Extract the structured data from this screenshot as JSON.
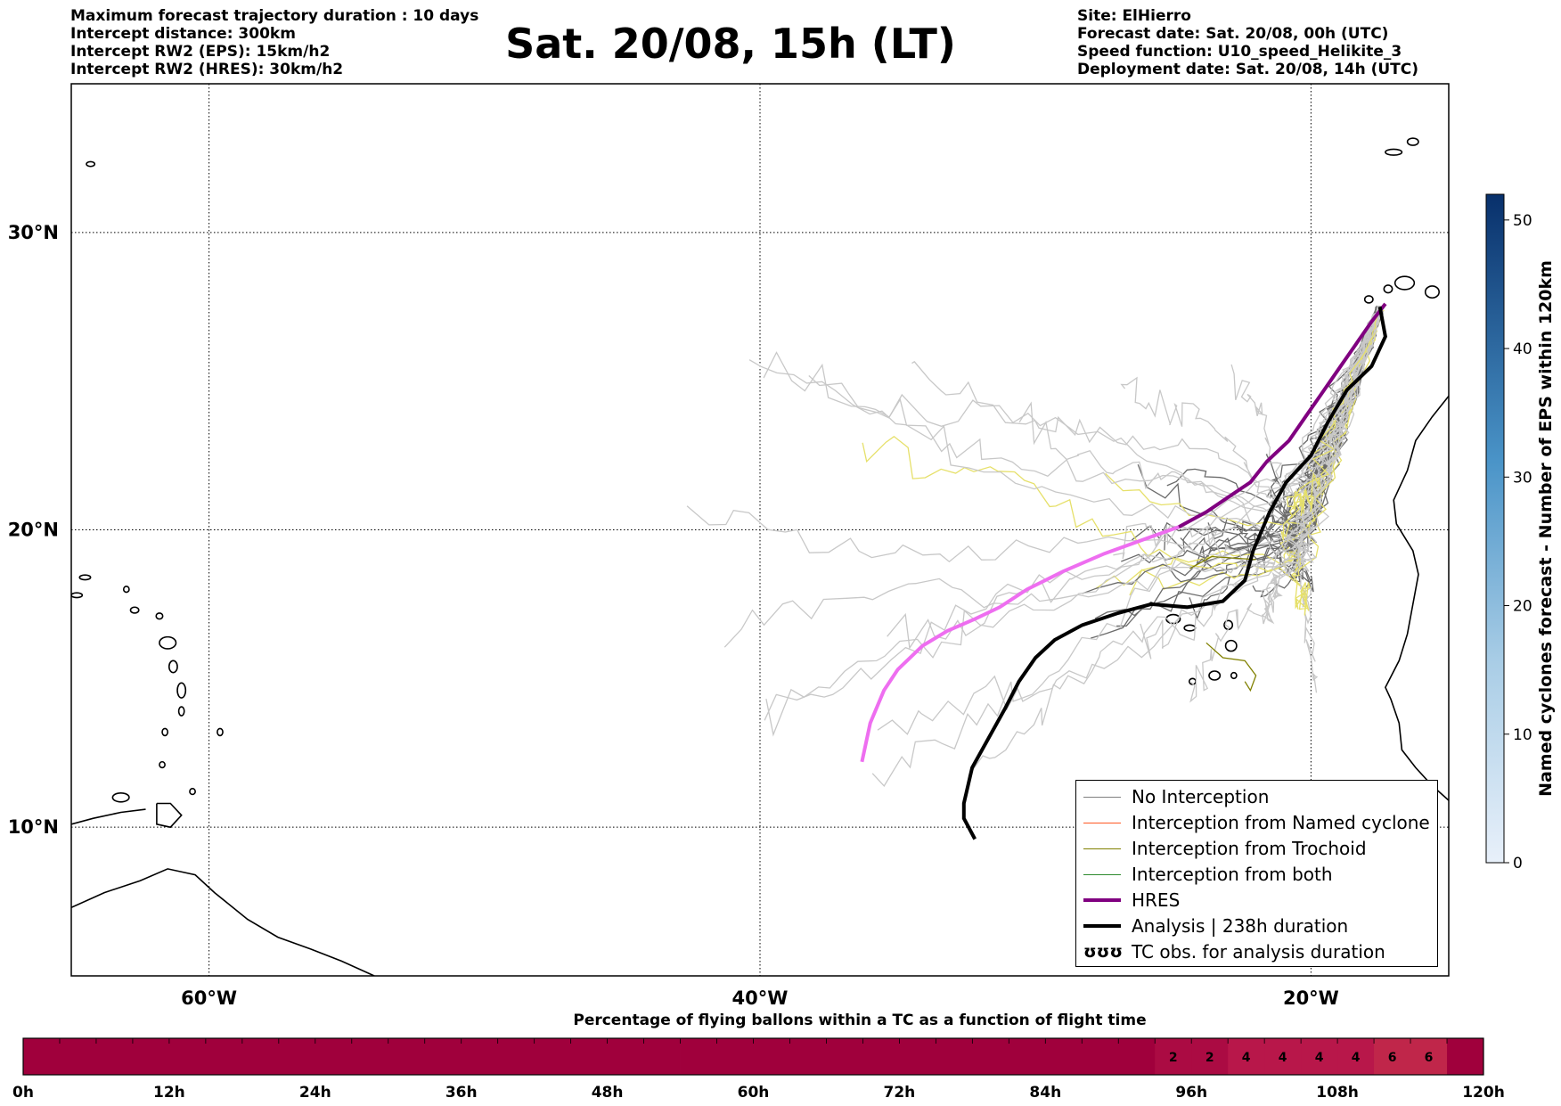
{
  "header": {
    "left_lines": [
      "Maximum forecast trajectory duration : 10 days",
      "Intercept distance: 300km",
      "Intercept RW2 (EPS):  15km/h2",
      "Intercept RW2 (HRES): 30km/h2"
    ],
    "title": "Sat. 20/08, 15h (LT)",
    "right_lines": [
      "Site: ElHierro",
      "Forecast date: Sat. 20/08, 00h (UTC)",
      "Speed function: U10_speed_Helikite_3",
      "Deployment date: Sat. 20/08, 14h (UTC)"
    ]
  },
  "map": {
    "lon_range": [
      -65,
      -15
    ],
    "lat_range": [
      5,
      35
    ],
    "lon_ticks": [
      {
        "value": -60,
        "label": "60°W"
      },
      {
        "value": -40,
        "label": "40°W"
      },
      {
        "value": -20,
        "label": "20°W"
      }
    ],
    "lat_ticks": [
      {
        "value": 30,
        "label": "30°N"
      },
      {
        "value": 20,
        "label": "20°N"
      },
      {
        "value": 10,
        "label": "10°N"
      }
    ],
    "grid": true
  },
  "legend": {
    "entries": [
      {
        "label": "No Interception",
        "color": "#808080"
      },
      {
        "label": "Interception from Named cyclone",
        "color": "#ff5722"
      },
      {
        "label": "Interception from Trochoid",
        "color": "#808000"
      },
      {
        "label": "Interception from both",
        "color": "#2e8b2e"
      },
      {
        "label": "HRES",
        "color": "#800080"
      },
      {
        "label": "Analysis | 238h duration",
        "color": "#000000"
      },
      {
        "label": "TC obs. for analysis duration",
        "color": "#000000",
        "icon": "ʊʊʊ"
      }
    ]
  },
  "colorbar": {
    "label": "Named cyclones forecast - Number of EPS within 120km",
    "ticks": [
      "0",
      "10",
      "20",
      "30",
      "40",
      "50"
    ],
    "min": 0,
    "max": 52,
    "color_low": "#e8f0fa",
    "color_high": "#08306b"
  },
  "time_bar": {
    "title": "Percentage of flying ballons within a TC as a function of flight time",
    "tick_labels": [
      "0h",
      "12h",
      "24h",
      "36h",
      "48h",
      "60h",
      "72h",
      "84h",
      "96h",
      "108h",
      "120h"
    ],
    "cells": [
      "",
      "",
      "",
      "",
      "",
      "",
      "",
      "",
      "",
      "",
      "",
      "",
      "",
      "",
      "",
      "",
      "",
      "",
      "",
      "",
      "",
      "",
      "",
      "",
      "",
      "",
      "",
      "",
      "",
      "",
      "",
      "2",
      "2",
      "4",
      "4",
      "4",
      "4",
      "6",
      "6",
      ""
    ],
    "base_color": "#a0003c"
  },
  "chart_data": {
    "type": "map-trajectories",
    "hres_track": [
      [
        -17.3,
        27.6
      ],
      [
        -17.8,
        27.0
      ],
      [
        -18.4,
        26.2
      ],
      [
        -19.0,
        25.4
      ],
      [
        -19.6,
        24.6
      ],
      [
        -20.2,
        23.8
      ],
      [
        -20.8,
        23.0
      ],
      [
        -21.6,
        22.3
      ],
      [
        -22.2,
        21.6
      ],
      [
        -23.0,
        21.1
      ],
      [
        -23.8,
        20.6
      ],
      [
        -24.8,
        20.1
      ],
      [
        -26.0,
        19.7
      ],
      [
        -27.5,
        19.2
      ],
      [
        -29.0,
        18.6
      ],
      [
        -30.3,
        18.0
      ],
      [
        -31.3,
        17.4
      ],
      [
        -32.2,
        17.0
      ],
      [
        -33.2,
        16.6
      ],
      [
        -34.1,
        16.1
      ],
      [
        -35.0,
        15.3
      ],
      [
        -35.5,
        14.6
      ],
      [
        -36.0,
        13.5
      ],
      [
        -36.3,
        12.2
      ]
    ],
    "analysis_track": [
      [
        -17.5,
        27.5
      ],
      [
        -17.3,
        26.5
      ],
      [
        -17.8,
        25.5
      ],
      [
        -18.7,
        24.7
      ],
      [
        -19.4,
        23.6
      ],
      [
        -20.0,
        22.5
      ],
      [
        -20.9,
        21.6
      ],
      [
        -21.5,
        20.6
      ],
      [
        -22.1,
        19.3
      ],
      [
        -22.4,
        18.3
      ],
      [
        -23.2,
        17.6
      ],
      [
        -24.5,
        17.4
      ],
      [
        -25.8,
        17.5
      ],
      [
        -27.0,
        17.2
      ],
      [
        -28.3,
        16.8
      ],
      [
        -29.3,
        16.3
      ],
      [
        -30.0,
        15.7
      ],
      [
        -30.6,
        14.9
      ],
      [
        -31.1,
        14.0
      ],
      [
        -31.7,
        13.0
      ],
      [
        -32.3,
        12.0
      ],
      [
        -32.6,
        10.8
      ],
      [
        -32.6,
        10.3
      ],
      [
        -32.2,
        9.6
      ]
    ],
    "eps_track_count": 51,
    "site": {
      "name": "ElHierro",
      "lon": -17.9,
      "lat": 27.7
    }
  }
}
